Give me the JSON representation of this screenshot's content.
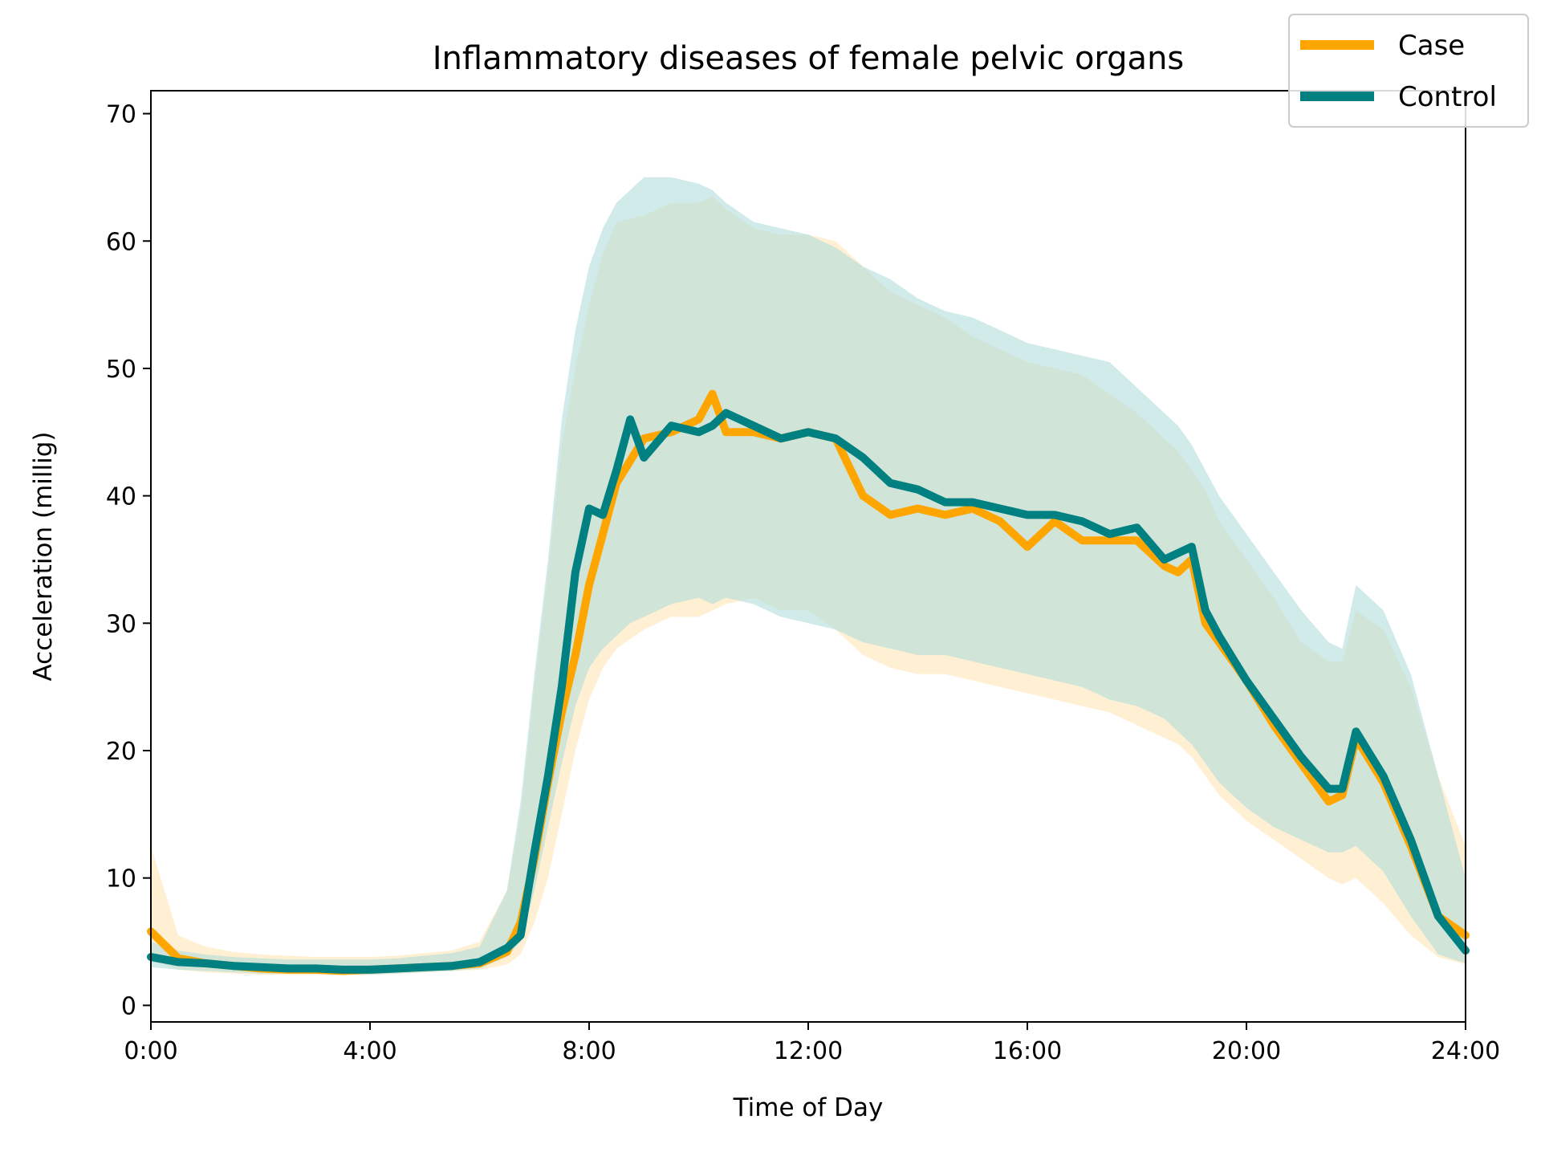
{
  "chart_data": {
    "type": "line",
    "title": "Inflammatory diseases of female pelvic organs",
    "xlabel": "Time of Day",
    "ylabel": "Acceleration (millig)",
    "xlim": [
      0,
      24
    ],
    "ylim": [
      -1.3,
      71.8
    ],
    "x_ticks": [
      0,
      4,
      8,
      12,
      16,
      20,
      24
    ],
    "x_tick_labels": [
      "0:00",
      "4:00",
      "8:00",
      "12:00",
      "16:00",
      "20:00",
      "24:00"
    ],
    "y_ticks": [
      0,
      10,
      20,
      30,
      40,
      50,
      60,
      70
    ],
    "y_tick_labels": [
      "0",
      "10",
      "20",
      "30",
      "40",
      "50",
      "60",
      "70"
    ],
    "grid": false,
    "legend_position": "top-right",
    "series": [
      {
        "name": "Case",
        "color": "#FFA500",
        "band_color": "#FFE6B5",
        "x": [
          0,
          0.5,
          1,
          1.5,
          2,
          2.5,
          3,
          3.5,
          4,
          4.5,
          5,
          5.5,
          6,
          6.5,
          6.75,
          7,
          7.25,
          7.5,
          7.75,
          8,
          8.25,
          8.5,
          9,
          9.5,
          10,
          10.25,
          10.5,
          11,
          11.5,
          12,
          12.5,
          13,
          13.5,
          14,
          14.5,
          15,
          15.5,
          16,
          16.5,
          17,
          17.5,
          18,
          18.5,
          18.75,
          19,
          19.25,
          19.5,
          20,
          20.5,
          21,
          21.5,
          21.75,
          22,
          22.5,
          23,
          23.5,
          24
        ],
        "values": [
          5.8,
          3.7,
          3.3,
          3.1,
          2.9,
          2.8,
          2.8,
          2.7,
          2.8,
          2.9,
          3,
          3.1,
          3.3,
          4.2,
          6.5,
          11.5,
          17.5,
          23,
          27.5,
          33,
          37,
          41,
          44.5,
          45,
          46,
          48,
          45,
          45,
          44.5,
          45,
          44.5,
          40,
          38.5,
          39,
          38.5,
          39,
          38,
          36,
          38,
          36.5,
          36.5,
          36.5,
          34.5,
          34,
          35,
          30,
          28.5,
          25.5,
          22,
          19,
          16,
          16.5,
          21,
          17.5,
          12.5,
          7,
          5.5
        ],
        "lower": [
          3.5,
          2.8,
          2.6,
          2.5,
          2.4,
          2.4,
          2.4,
          2.4,
          2.4,
          2.5,
          2.6,
          2.7,
          2.8,
          3.2,
          4,
          6.5,
          10,
          15,
          20,
          24,
          26.5,
          28,
          29.5,
          30.5,
          30.5,
          31,
          31.5,
          32,
          31,
          31,
          29.5,
          27.5,
          26.5,
          26,
          26,
          25.5,
          25,
          24.5,
          24,
          23.5,
          23,
          22,
          21,
          20.5,
          19.5,
          18,
          16.5,
          14.5,
          13,
          11.5,
          10,
          9.5,
          10,
          8,
          5.5,
          3.8,
          3.2
        ],
        "upper": [
          12.5,
          5.5,
          4.6,
          4.2,
          4,
          3.9,
          3.8,
          3.8,
          3.8,
          3.9,
          4.1,
          4.3,
          5,
          9,
          15,
          25,
          34,
          44,
          50,
          55,
          59,
          61.5,
          62,
          63,
          63,
          63.5,
          62.5,
          61,
          60.5,
          60.5,
          60,
          58,
          56,
          55,
          54,
          52.5,
          51.5,
          50.5,
          50,
          49.5,
          48,
          46.5,
          44.5,
          43.5,
          42,
          40.5,
          38,
          35,
          32,
          28.5,
          27,
          27,
          31,
          29.5,
          25,
          18,
          12.5
        ]
      },
      {
        "name": "Control",
        "color": "#008080",
        "band_color": "#B2DCDC",
        "x": [
          0,
          0.5,
          1,
          1.5,
          2,
          2.5,
          3,
          3.5,
          4,
          4.5,
          5,
          5.5,
          6,
          6.5,
          6.75,
          7,
          7.25,
          7.5,
          7.75,
          8,
          8.25,
          8.5,
          8.75,
          9,
          9.5,
          10,
          10.25,
          10.5,
          11,
          11.5,
          12,
          12.5,
          13,
          13.5,
          14,
          14.5,
          15,
          15.5,
          16,
          16.5,
          17,
          17.5,
          18,
          18.5,
          18.75,
          19,
          19.25,
          19.5,
          20,
          20.5,
          21,
          21.5,
          21.75,
          22,
          22.5,
          23,
          23.5,
          24
        ],
        "values": [
          3.8,
          3.4,
          3.3,
          3.1,
          3.0,
          2.9,
          2.9,
          2.8,
          2.8,
          2.9,
          3.0,
          3.1,
          3.4,
          4.5,
          5.5,
          12,
          18,
          25,
          34,
          39,
          38.5,
          42,
          46,
          43,
          45.5,
          45,
          45.5,
          46.5,
          45.5,
          44.5,
          45,
          44.5,
          43,
          41,
          40.5,
          39.5,
          39.5,
          39,
          38.5,
          38.5,
          38,
          37,
          37.5,
          35,
          35.5,
          36,
          31,
          29,
          25.5,
          22.5,
          19.5,
          17,
          17,
          21.5,
          18,
          13,
          7,
          4.3
        ],
        "lower": [
          3.0,
          2.8,
          2.7,
          2.6,
          2.5,
          2.5,
          2.5,
          2.4,
          2.4,
          2.5,
          2.6,
          2.7,
          2.9,
          3.8,
          5,
          9,
          14,
          19,
          23.5,
          26.5,
          28,
          29,
          30,
          30.5,
          31.5,
          32,
          31.5,
          32,
          31.5,
          30.5,
          30,
          29.5,
          28.5,
          28,
          27.5,
          27.5,
          27,
          26.5,
          26,
          25.5,
          25,
          24,
          23.5,
          22.5,
          21.5,
          20.5,
          19,
          17.5,
          15.5,
          14,
          13,
          12,
          12,
          12.5,
          10.5,
          7,
          4,
          3.3
        ],
        "upper": [
          5.0,
          4.3,
          4.0,
          3.8,
          3.7,
          3.6,
          3.6,
          3.6,
          3.6,
          3.7,
          3.9,
          4.1,
          4.6,
          9,
          16,
          26,
          35,
          46,
          53,
          58,
          61,
          63,
          64,
          65,
          65,
          64.5,
          64,
          63,
          61.5,
          61,
          60.5,
          59.5,
          58,
          57,
          55.5,
          54.5,
          54,
          53,
          52,
          51.5,
          51,
          50.5,
          48.5,
          46.5,
          45.5,
          44,
          42,
          40,
          37,
          34,
          31,
          28.5,
          28,
          33,
          31,
          26,
          18,
          10
        ]
      }
    ]
  }
}
